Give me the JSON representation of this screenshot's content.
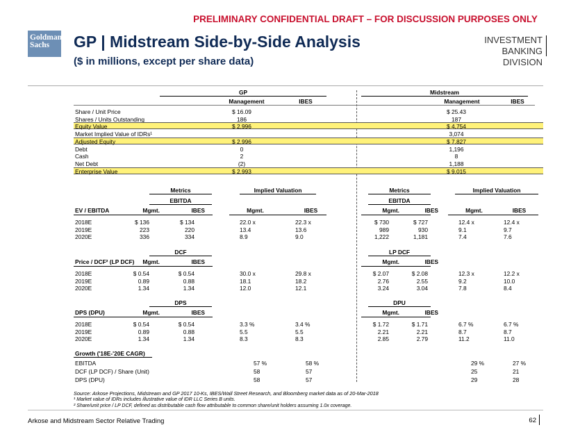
{
  "banner": "PRELIMINARY CONFIDENTIAL DRAFT – FOR DISCUSSION PURPOSES ONLY",
  "logo": {
    "line1": "Goldman",
    "line2": "Sachs"
  },
  "title": "GP | Midstream Side-by-Side Analysis",
  "subtitle": "($ in millions, except per share data)",
  "division": {
    "line1": "INVESTMENT BANKING",
    "line2": "DIVISION"
  },
  "gp_header": "GP",
  "mid_header": "Midstream",
  "col_management": "Management",
  "col_ibes": "IBES",
  "cap_rows": [
    {
      "label": "Share / Unit Price",
      "gp": "$ 16.09",
      "mid": "$ 25.43",
      "hl": false
    },
    {
      "label": "Shares / Units Outstanding",
      "gp": "186",
      "mid": "187",
      "hl": false
    },
    {
      "label": "Equity Value",
      "gp": "$ 2,996",
      "mid": "$ 4,754",
      "hl": true
    },
    {
      "label": "Market Implied Value of IDRs¹",
      "gp": "",
      "mid": "3,074",
      "hl": false
    },
    {
      "label": "Adjusted Equity",
      "gp": "$ 2,996",
      "mid": "$ 7,827",
      "hl": true
    },
    {
      "label": "Debt",
      "gp": "0",
      "mid": "1,196",
      "hl": false
    },
    {
      "label": "Cash",
      "gp": "2",
      "mid": "8",
      "hl": false
    },
    {
      "label": "Net Debt",
      "gp": "(2)",
      "mid": "1,188",
      "hl": false
    },
    {
      "label": "Enterprise Value",
      "gp": "$ 2,993",
      "mid": "$ 9,015",
      "hl": true
    }
  ],
  "metrics_label": "Metrics",
  "implied_label": "Implied Valuation",
  "mgmt": "Mgmt.",
  "ibes": "IBES",
  "sections": [
    {
      "row_label": "EV / EBITDA",
      "gp_metric": "EBITDA",
      "mid_metric": "EBITDA",
      "rows": [
        {
          "year": "2018E",
          "gp": [
            "$ 136",
            "$ 134",
            "22.0 x",
            "22.3 x"
          ],
          "mid": [
            "$ 730",
            "$ 727",
            "12.4 x",
            "12.4 x"
          ]
        },
        {
          "year": "2019E",
          "gp": [
            "223",
            "220",
            "13.4",
            "13.6"
          ],
          "mid": [
            "989",
            "930",
            "9.1",
            "9.7"
          ]
        },
        {
          "year": "2020E",
          "gp": [
            "336",
            "334",
            "8.9",
            "9.0"
          ],
          "mid": [
            "1,222",
            "1,181",
            "7.4",
            "7.6"
          ]
        }
      ]
    },
    {
      "row_label": "Price / DCF² (LP DCF)",
      "gp_metric": "DCF",
      "mid_metric": "LP DCF",
      "rows": [
        {
          "year": "2018E",
          "gp": [
            "$ 0.54",
            "$ 0.54",
            "30.0 x",
            "29.8 x"
          ],
          "mid": [
            "$ 2.07",
            "$ 2.08",
            "12.3 x",
            "12.2 x"
          ]
        },
        {
          "year": "2019E",
          "gp": [
            "0.89",
            "0.88",
            "18.1",
            "18.2"
          ],
          "mid": [
            "2.76",
            "2.55",
            "9.2",
            "10.0"
          ]
        },
        {
          "year": "2020E",
          "gp": [
            "1.34",
            "1.34",
            "12.0",
            "12.1"
          ],
          "mid": [
            "3.24",
            "3.04",
            "7.8",
            "8.4"
          ]
        }
      ]
    },
    {
      "row_label": "DPS (DPU)",
      "gp_metric": "DPS",
      "mid_metric": "DPU",
      "rows": [
        {
          "year": "2018E",
          "gp": [
            "$ 0.54",
            "$ 0.54",
            "3.3 %",
            "3.4 %"
          ],
          "mid": [
            "$ 1.72",
            "$ 1.71",
            "6.7 %",
            "6.7 %"
          ]
        },
        {
          "year": "2019E",
          "gp": [
            "0.89",
            "0.88",
            "5.5",
            "5.5"
          ],
          "mid": [
            "2.21",
            "2.21",
            "8.7",
            "8.7"
          ]
        },
        {
          "year": "2020E",
          "gp": [
            "1.34",
            "1.34",
            "8.3",
            "8.3"
          ],
          "mid": [
            "2.85",
            "2.79",
            "11.2",
            "11.0"
          ]
        }
      ]
    }
  ],
  "growth": {
    "header": "Growth ('18E-'20E CAGR)",
    "rows": [
      {
        "label": "EBITDA",
        "gp_mgmt": "57 %",
        "gp_ibes": "58 %",
        "mid_mgmt": "29 %",
        "mid_ibes": "27 %"
      },
      {
        "label": "DCF (LP DCF) / Share (Unit)",
        "gp_mgmt": "58",
        "gp_ibes": "57",
        "mid_mgmt": "25",
        "mid_ibes": "21"
      },
      {
        "label": "DPS (DPU)",
        "gp_mgmt": "58",
        "gp_ibes": "57",
        "mid_mgmt": "29",
        "mid_ibes": "28"
      }
    ]
  },
  "notes": [
    "Source: Arkose Projections, Midstream and GP 2017 10-Ks, IBES/Wall Street Research, and Bloomberg market data as of 20-Mar-2018",
    "¹ Market value of IDRs includes illustrative value of IDR LLC Series B units.",
    "² Share/unit price / LP DCF, defined as distributable cash flow attributable to common share/unit holders assuming 1.0x coverage."
  ],
  "footer_left": "Arkose and Midstream Sector Relative Trading",
  "page_number": "62"
}
